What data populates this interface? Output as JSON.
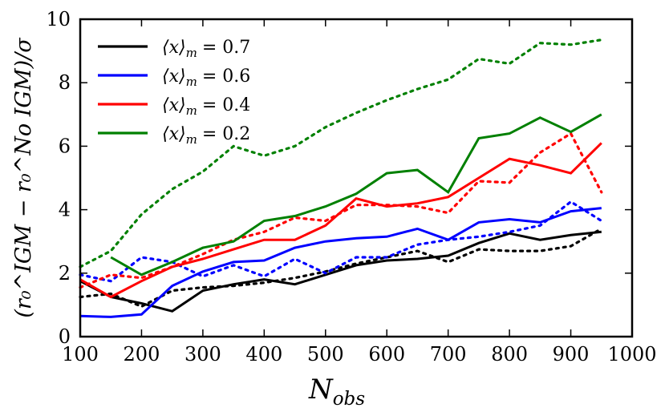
{
  "chart_data": {
    "type": "line",
    "title": "",
    "xlabel_main": "N",
    "xlabel_sub": "obs",
    "ylabel": "(r₀^IGM − r₀^No IGM)/σ",
    "xlim": [
      100,
      1000
    ],
    "ylim": [
      0,
      10
    ],
    "x_ticks": [
      100,
      200,
      300,
      400,
      500,
      600,
      700,
      800,
      900,
      1000
    ],
    "y_ticks": [
      0,
      2,
      4,
      6,
      8,
      10
    ],
    "grid": false,
    "legend_position": "top-left",
    "legend_prefix": "⟨x⟩",
    "legend_sub": "m",
    "series": [
      {
        "name": "⟨x⟩m = 0.7",
        "legend_value": "= 0.7",
        "color": "#000000",
        "solid_x": [
          100,
          150,
          200,
          250,
          300,
          350,
          400,
          450,
          500,
          550,
          600,
          650,
          700,
          750,
          800,
          850,
          900,
          950
        ],
        "solid_y": [
          1.75,
          1.25,
          1.05,
          0.8,
          1.45,
          1.65,
          1.8,
          1.65,
          1.95,
          2.25,
          2.4,
          2.45,
          2.55,
          2.95,
          3.25,
          3.05,
          3.2,
          3.3
        ],
        "dotted_x": [
          100,
          150,
          200,
          250,
          300,
          350,
          400,
          450,
          500,
          550,
          600,
          650,
          700,
          750,
          800,
          850,
          900,
          950
        ],
        "dotted_y": [
          1.25,
          1.35,
          0.95,
          1.45,
          1.55,
          1.6,
          1.7,
          1.85,
          2.05,
          2.3,
          2.5,
          2.7,
          2.35,
          2.75,
          2.7,
          2.7,
          2.85,
          3.4
        ]
      },
      {
        "name": "⟨x⟩m = 0.6",
        "legend_value": "= 0.6",
        "color": "#0000ff",
        "solid_x": [
          100,
          150,
          200,
          250,
          300,
          350,
          400,
          450,
          500,
          550,
          600,
          650,
          700,
          750,
          800,
          850,
          900,
          950
        ],
        "solid_y": [
          0.65,
          0.62,
          0.7,
          1.6,
          2.05,
          2.35,
          2.4,
          2.8,
          3.0,
          3.1,
          3.15,
          3.4,
          3.05,
          3.6,
          3.7,
          3.6,
          3.95,
          4.05
        ],
        "dotted_x": [
          100,
          150,
          200,
          250,
          300,
          350,
          400,
          450,
          500,
          550,
          600,
          650,
          700,
          750,
          800,
          850,
          900,
          950
        ],
        "dotted_y": [
          1.95,
          1.75,
          2.5,
          2.35,
          1.9,
          2.25,
          1.9,
          2.45,
          2.0,
          2.5,
          2.5,
          2.9,
          3.05,
          3.15,
          3.3,
          3.5,
          4.25,
          3.65
        ]
      },
      {
        "name": "⟨x⟩m = 0.4",
        "legend_value": "= 0.4",
        "color": "#ff0000",
        "solid_x": [
          100,
          150,
          200,
          250,
          300,
          350,
          400,
          450,
          500,
          550,
          600,
          650,
          700,
          750,
          800,
          850,
          900,
          950
        ],
        "solid_y": [
          1.8,
          1.25,
          1.75,
          2.2,
          2.45,
          2.75,
          3.05,
          3.05,
          3.5,
          4.35,
          4.1,
          4.2,
          4.4,
          5.0,
          5.6,
          5.4,
          5.15,
          6.1
        ],
        "dotted_x": [
          100,
          150,
          200,
          250,
          300,
          350,
          400,
          450,
          500,
          550,
          600,
          650,
          700,
          750,
          800,
          850,
          900,
          950
        ],
        "dotted_y": [
          1.55,
          1.95,
          1.85,
          2.2,
          2.6,
          3.05,
          3.3,
          3.75,
          3.65,
          4.15,
          4.15,
          4.1,
          3.9,
          4.9,
          4.85,
          5.8,
          6.4,
          4.55
        ]
      },
      {
        "name": "⟨x⟩m = 0.2",
        "legend_value": "= 0.2",
        "color": "#008000",
        "solid_x": [
          150,
          200,
          250,
          300,
          350,
          400,
          450,
          500,
          550,
          600,
          650,
          700,
          750,
          800,
          850,
          900,
          950
        ],
        "solid_y": [
          2.5,
          1.95,
          2.35,
          2.8,
          3.0,
          3.65,
          3.8,
          4.1,
          4.5,
          5.15,
          5.25,
          4.55,
          6.25,
          6.4,
          6.9,
          6.45,
          7.0
        ],
        "dotted_x": [
          100,
          150,
          200,
          250,
          300,
          350,
          400,
          450,
          500,
          550,
          600,
          650,
          700,
          750,
          800,
          850,
          900,
          950
        ],
        "dotted_y": [
          2.2,
          2.7,
          3.85,
          4.65,
          5.2,
          6.0,
          5.7,
          6.0,
          6.6,
          7.05,
          7.45,
          7.8,
          8.1,
          8.75,
          8.6,
          9.25,
          9.2,
          9.35
        ]
      }
    ]
  }
}
